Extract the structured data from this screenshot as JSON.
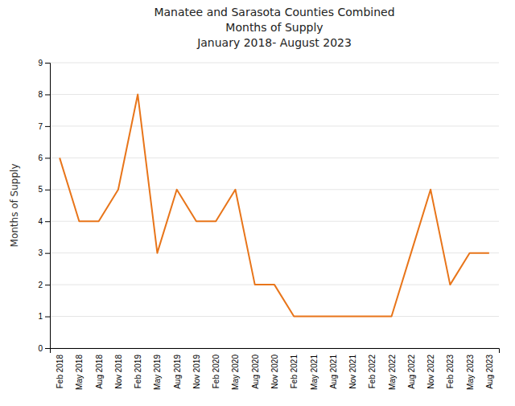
{
  "chart_data": {
    "type": "line",
    "title": "Manatee and Sarasota Counties Combined\nMonths of Supply\nJanuary 2018- August 2023",
    "ylabel": "Months of Supply",
    "categories": [
      "Feb 2018",
      "May 2018",
      "Aug 2018",
      "Nov 2018",
      "Feb 2019",
      "May 2019",
      "Aug 2019",
      "Nov 2019",
      "Feb 2020",
      "May 2020",
      "Aug 2020",
      "Nov 2020",
      "Feb 2021",
      "May 2021",
      "Aug 2021",
      "Nov 2021",
      "Feb 2022",
      "May 2022",
      "Aug 2022",
      "Nov 2022",
      "Feb 2023",
      "May 2023",
      "Aug 2023"
    ],
    "values": [
      6,
      4,
      4,
      5,
      8,
      3,
      5,
      4,
      4,
      5,
      2,
      2,
      1,
      1,
      1,
      1,
      1,
      1,
      3,
      5,
      2,
      3,
      3
    ],
    "color": "#E8751A",
    "ylim": [
      0,
      9
    ],
    "yticks": [
      0,
      1,
      2,
      3,
      4,
      5,
      6,
      7,
      8,
      9
    ],
    "grid": true
  }
}
